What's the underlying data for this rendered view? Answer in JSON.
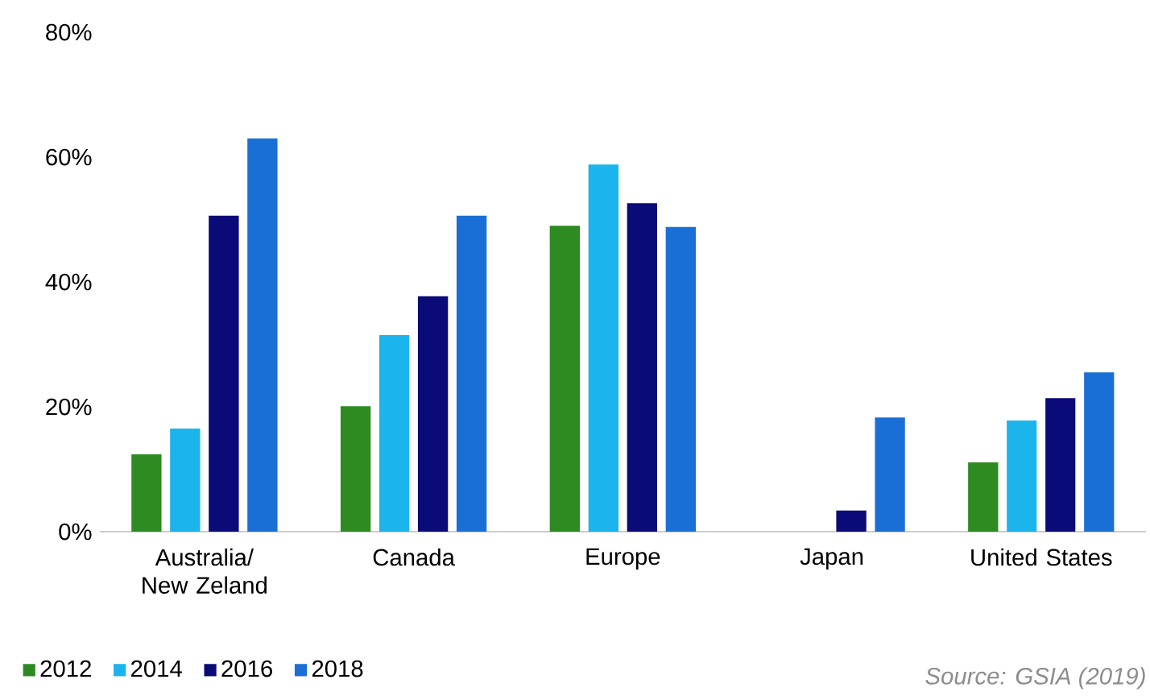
{
  "chart_data": {
    "type": "bar",
    "categories": [
      "Australia/ New Zeland",
      "Canada",
      "Europe",
      "Japan",
      "United States"
    ],
    "series": [
      {
        "name": "2012",
        "color": "#2e8b22",
        "values": [
          12.4,
          20.1,
          49,
          null,
          11.1
        ]
      },
      {
        "name": "2014",
        "color": "#1cb4ec",
        "values": [
          16.5,
          31.5,
          58.8,
          null,
          17.8
        ]
      },
      {
        "name": "2016",
        "color": "#0a0a78",
        "values": [
          50.6,
          37.7,
          52.6,
          3.4,
          21.4
        ]
      },
      {
        "name": "2018",
        "color": "#1a6fd6",
        "values": [
          63,
          50.6,
          48.8,
          18.3,
          25.5
        ]
      }
    ],
    "ylim": [
      0,
      80
    ],
    "yticks": [
      {
        "value": 0,
        "label": "0%"
      },
      {
        "value": 20,
        "label": "20%"
      },
      {
        "value": 40,
        "label": "40%"
      },
      {
        "value": 60,
        "label": "60%"
      },
      {
        "value": 80,
        "label": "80%"
      }
    ],
    "grid": false,
    "legend": "bottom left",
    "annotations": [
      "*Source: GSIA (2019)*"
    ]
  }
}
